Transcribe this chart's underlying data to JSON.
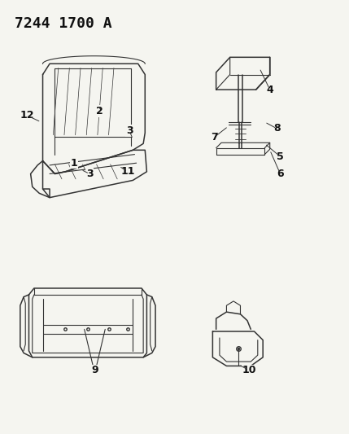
{
  "title": "7244 1700 A",
  "background_color": "#f5f5f0",
  "line_color": "#333333",
  "label_color": "#111111",
  "title_fontsize": 13,
  "label_fontsize": 9,
  "fig_width": 4.29,
  "fig_height": 5.33,
  "dpi": 100
}
